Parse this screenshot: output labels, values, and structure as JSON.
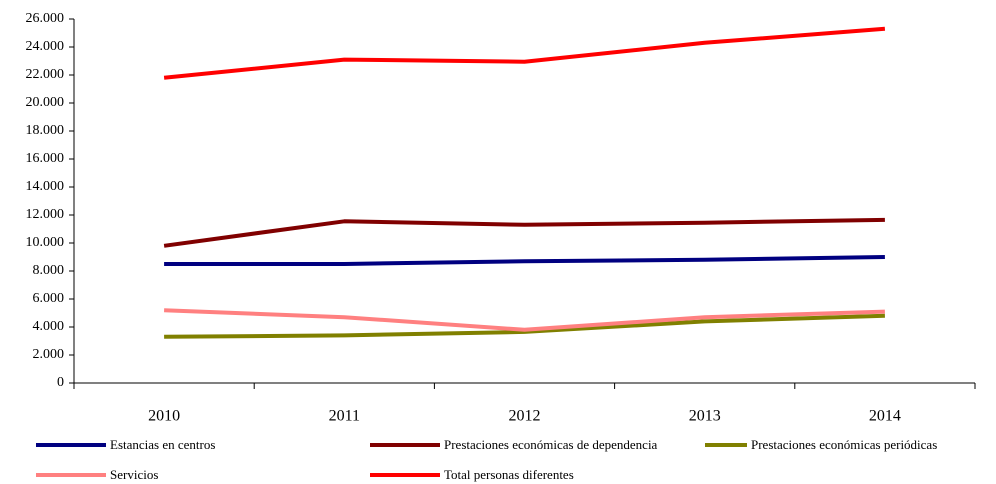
{
  "chart_data": {
    "type": "line",
    "categories": [
      "2010",
      "2011",
      "2012",
      "2013",
      "2014"
    ],
    "series": [
      {
        "name": "Estancias en centros",
        "color": "#000080",
        "values": [
          8500,
          8500,
          8700,
          8800,
          9000
        ]
      },
      {
        "name": "Prestaciones económicas de dependencia",
        "color": "#800000",
        "values": [
          9800,
          11550,
          11300,
          11450,
          11650
        ]
      },
      {
        "name": "Prestaciones económicas periódicas",
        "color": "#808000",
        "values": [
          3300,
          3400,
          3650,
          4400,
          4800
        ]
      },
      {
        "name": "Servicios",
        "color": "#ff8080",
        "values": [
          5200,
          4700,
          3800,
          4700,
          5100
        ]
      },
      {
        "name": "Total personas diferentes",
        "color": "#ff0000",
        "values": [
          21800,
          23100,
          22950,
          24300,
          25300
        ]
      }
    ],
    "ylim": [
      0,
      26000
    ],
    "yticks": [
      0,
      {
        "value": 2000,
        "label": "2.000"
      },
      {
        "value": 4000,
        "label": "4.000"
      },
      {
        "value": 6000,
        "label": "6.000"
      },
      {
        "value": 8000,
        "label": "8.000"
      },
      {
        "value": 10000,
        "label": "10.000"
      },
      {
        "value": 12000,
        "label": "12.000"
      },
      {
        "value": 14000,
        "label": "14.000"
      },
      {
        "value": 16000,
        "label": "16.000"
      },
      {
        "value": 18000,
        "label": "18.000"
      },
      {
        "value": 20000,
        "label": "20.000"
      },
      {
        "value": 22000,
        "label": "22.000"
      },
      {
        "value": 24000,
        "label": "24.000"
      },
      {
        "value": 26000,
        "label": "26.000"
      }
    ],
    "grid": false
  }
}
